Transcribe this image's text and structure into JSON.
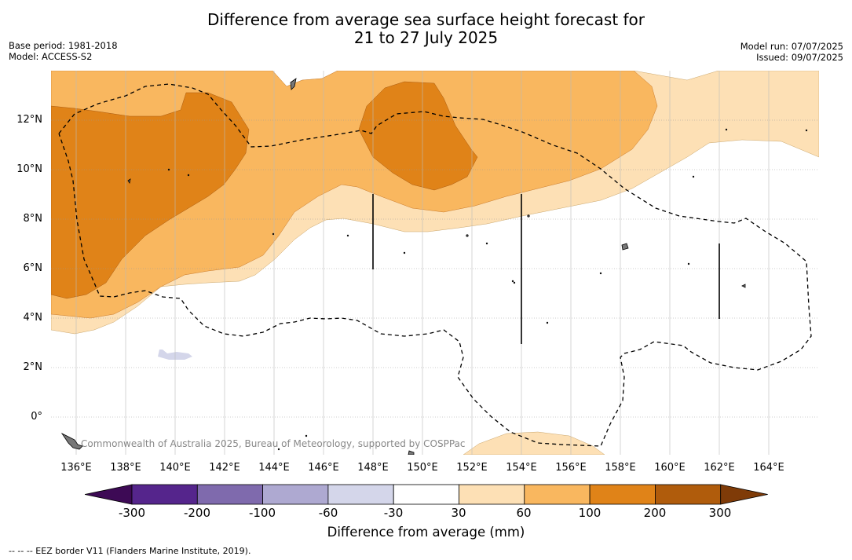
{
  "title_line1": "Difference from average sea surface height forecast for",
  "title_line2": "21 to 27 July 2025",
  "base_period": "Base period: 1981-2018",
  "model": "Model: ACCESS-S2",
  "model_run": "Model run: 07/07/2025",
  "issued": "Issued: 09/07/2025",
  "credit": "Commonwealth of Australia 2025, Bureau of Meteorology, supported by COSPPac",
  "footnote": "-- -- -- EEZ border V11 (Flanders Marine Institute, 2019).",
  "lat_ticks": [
    "12°N",
    "10°N",
    "8°N",
    "6°N",
    "4°N",
    "2°N",
    "0°"
  ],
  "lon_ticks": [
    "136°E",
    "138°E",
    "140°E",
    "142°E",
    "144°E",
    "146°E",
    "148°E",
    "150°E",
    "152°E",
    "154°E",
    "156°E",
    "158°E",
    "160°E",
    "162°E",
    "164°E"
  ],
  "colorbar": {
    "title": "Difference from average (mm)",
    "labels": [
      "-300",
      "-200",
      "-100",
      "-60",
      "-30",
      "30",
      "60",
      "100",
      "200",
      "300"
    ],
    "colors": [
      "#3d0a55",
      "#55258c",
      "#7f6aad",
      "#aea9d1",
      "#d4d6ea",
      "#ffffff",
      "#fde0b5",
      "#f9b75f",
      "#e08318",
      "#b05c0c",
      "#7f3b08"
    ]
  },
  "colors": {
    "band_30_60": "#fde0b5",
    "band_60_100": "#f9b75f",
    "band_100_200": "#e08318",
    "band_neg_30_60": "#d4d6ea"
  }
}
